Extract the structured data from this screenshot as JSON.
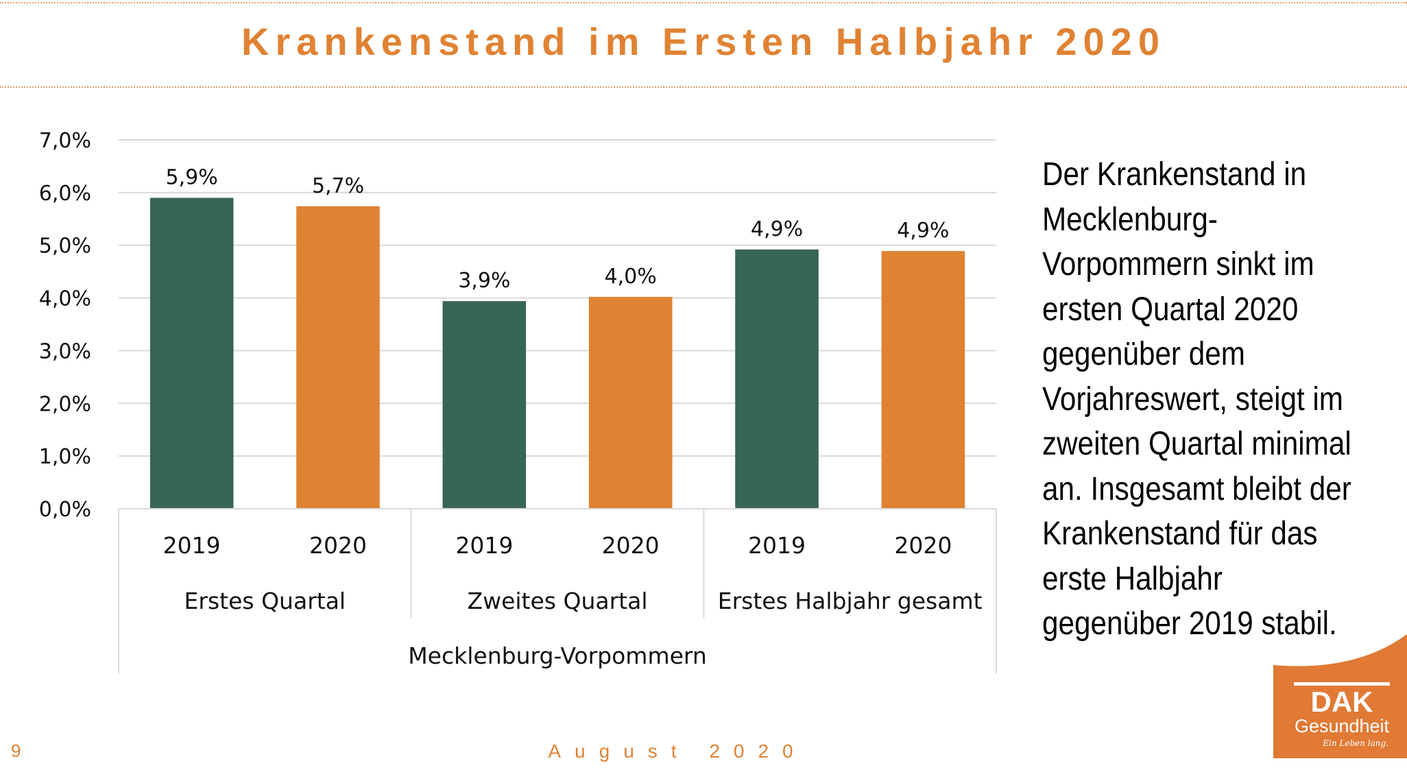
{
  "slide": {
    "title": "Krankenstand im Ersten Halbjahr 2020",
    "page_number": "9",
    "footer_date": "August 2020",
    "side_text_lines": [
      "Der Krankenstand in",
      "Mecklenburg-",
      "Vorpommern sinkt im",
      "ersten Quartal 2020",
      "gegenüber dem",
      "Vorjahreswert, steigt im",
      "zweiten Quartal minimal",
      "an. Insgesamt bleibt der",
      "Krankenstand für das",
      "erste Halbjahr",
      "gegenüber 2019 stabil."
    ],
    "logo": {
      "brand": "DAK",
      "sub": "Gesundheit",
      "tagline": "Ein Leben lang."
    },
    "colors": {
      "accent": "#e08232",
      "bar_2019": "#376556",
      "bar_2020": "#df8232",
      "grid": "#d9d9d9"
    }
  },
  "chart_data": {
    "type": "bar",
    "title": "Krankenstand im Ersten Halbjahr 2020",
    "xlabel": "",
    "ylabel": "",
    "ylim": [
      0,
      7
    ],
    "yticks": [
      0,
      1,
      2,
      3,
      4,
      5,
      6,
      7
    ],
    "ytick_labels": [
      "0,0%",
      "1,0%",
      "2,0%",
      "3,0%",
      "4,0%",
      "5,0%",
      "6,0%",
      "7,0%"
    ],
    "grid": true,
    "legend": "none",
    "region": "Mecklenburg-Vorpommern",
    "groups": [
      "Erstes Quartal",
      "Zweites Quartal",
      "Erstes Halbjahr gesamt"
    ],
    "categories": [
      "2019",
      "2020",
      "2019",
      "2020",
      "2019",
      "2020"
    ],
    "values": [
      5.9,
      5.74,
      3.94,
      4.02,
      4.92,
      4.89
    ],
    "data_labels": [
      "5,9%",
      "5,7%",
      "3,9%",
      "4,0%",
      "4,9%",
      "4,9%"
    ],
    "series_colors": [
      "#376556",
      "#df8232",
      "#376556",
      "#df8232",
      "#376556",
      "#df8232"
    ]
  }
}
